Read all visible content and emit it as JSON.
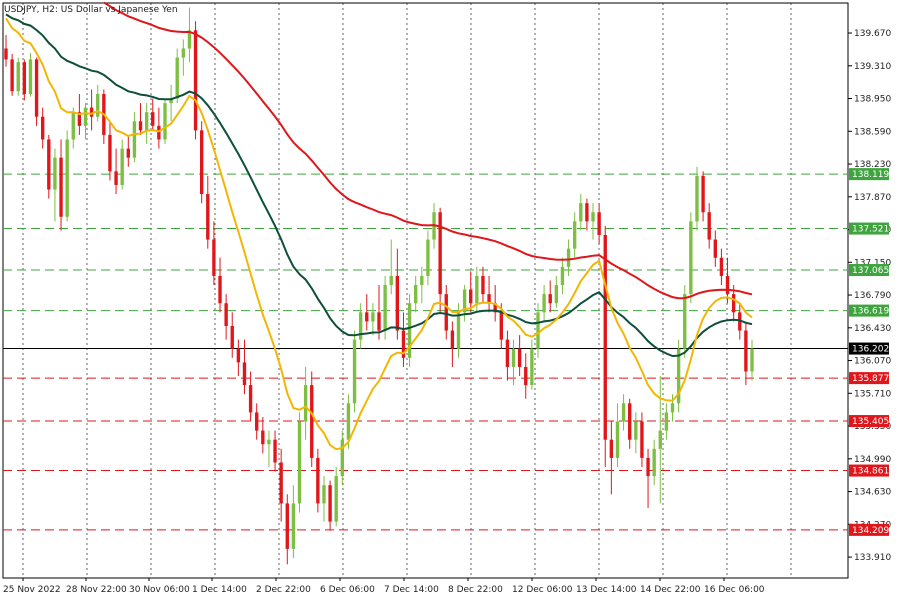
{
  "chart_data": {
    "type": "candlestick",
    "title": "USDJPY, H2:  US Dollar vs Japanese Yen",
    "y_range": [
      133.68,
      140.0
    ],
    "y_ticks": [
      "139.670",
      "139.310",
      "138.950",
      "138.590",
      "138.230",
      "137.870",
      "137.510",
      "137.150",
      "136.790",
      "136.430",
      "136.070",
      "135.710",
      "135.350",
      "134.990",
      "134.630",
      "134.270",
      "133.910"
    ],
    "x_tick_labels": [
      "25 Nov 2022",
      "28 Nov 22:00",
      "30 Nov 06:00",
      "1 Dec 14:00",
      "2 Dec 22:00",
      "6 Dec 06:00",
      "7 Dec 14:00",
      "8 Dec 22:00",
      "12 Dec 06:00",
      "13 Dec 14:00",
      "14 Dec 22:00",
      "16 Dec 06:00"
    ],
    "grid": "on (vertical dotted)",
    "current_price": 136.202,
    "horizontal_levels": [
      {
        "value": 138.119,
        "color": "green"
      },
      {
        "value": 137.521,
        "color": "green"
      },
      {
        "value": 137.065,
        "color": "green"
      },
      {
        "value": 136.619,
        "color": "green"
      },
      {
        "value": 135.877,
        "color": "red"
      },
      {
        "value": 135.405,
        "color": "red"
      },
      {
        "value": 134.861,
        "color": "red"
      },
      {
        "value": 134.209,
        "color": "red"
      }
    ],
    "candles": [
      {
        "o": 139.5,
        "h": 139.65,
        "l": 139.3,
        "c": 139.38
      },
      {
        "o": 139.38,
        "h": 139.44,
        "l": 138.98,
        "c": 139.03
      },
      {
        "o": 139.03,
        "h": 139.4,
        "l": 138.98,
        "c": 139.35
      },
      {
        "o": 139.35,
        "h": 139.38,
        "l": 138.93,
        "c": 139.0
      },
      {
        "o": 139.0,
        "h": 139.45,
        "l": 138.97,
        "c": 139.38
      },
      {
        "o": 139.38,
        "h": 139.4,
        "l": 138.65,
        "c": 138.75
      },
      {
        "o": 138.75,
        "h": 138.85,
        "l": 138.4,
        "c": 138.5
      },
      {
        "o": 138.5,
        "h": 138.55,
        "l": 137.85,
        "c": 137.95
      },
      {
        "o": 137.95,
        "h": 138.4,
        "l": 137.6,
        "c": 138.3
      },
      {
        "o": 138.3,
        "h": 138.5,
        "l": 137.5,
        "c": 137.65
      },
      {
        "o": 137.65,
        "h": 138.6,
        "l": 137.6,
        "c": 138.5
      },
      {
        "o": 138.5,
        "h": 138.85,
        "l": 138.4,
        "c": 138.8
      },
      {
        "o": 138.8,
        "h": 139.0,
        "l": 138.55,
        "c": 138.65
      },
      {
        "o": 138.65,
        "h": 138.9,
        "l": 138.5,
        "c": 138.85
      },
      {
        "o": 138.85,
        "h": 139.05,
        "l": 138.6,
        "c": 138.75
      },
      {
        "o": 138.75,
        "h": 139.1,
        "l": 138.7,
        "c": 139.0
      },
      {
        "o": 139.0,
        "h": 139.05,
        "l": 138.45,
        "c": 138.55
      },
      {
        "o": 138.55,
        "h": 138.7,
        "l": 138.05,
        "c": 138.15
      },
      {
        "o": 138.15,
        "h": 138.4,
        "l": 137.9,
        "c": 138.0
      },
      {
        "o": 138.0,
        "h": 138.5,
        "l": 137.95,
        "c": 138.4
      },
      {
        "o": 138.4,
        "h": 138.55,
        "l": 138.2,
        "c": 138.3
      },
      {
        "o": 138.3,
        "h": 138.8,
        "l": 138.25,
        "c": 138.7
      },
      {
        "o": 138.7,
        "h": 138.9,
        "l": 138.55,
        "c": 138.6
      },
      {
        "o": 138.6,
        "h": 138.9,
        "l": 138.45,
        "c": 138.8
      },
      {
        "o": 138.8,
        "h": 138.95,
        "l": 138.6,
        "c": 138.65
      },
      {
        "o": 138.65,
        "h": 138.85,
        "l": 138.4,
        "c": 138.5
      },
      {
        "o": 138.5,
        "h": 138.95,
        "l": 138.45,
        "c": 138.9
      },
      {
        "o": 138.9,
        "h": 139.1,
        "l": 138.7,
        "c": 138.95
      },
      {
        "o": 138.95,
        "h": 139.5,
        "l": 138.9,
        "c": 139.4
      },
      {
        "o": 139.4,
        "h": 139.6,
        "l": 139.2,
        "c": 139.5
      },
      {
        "o": 139.5,
        "h": 139.95,
        "l": 139.35,
        "c": 139.7
      },
      {
        "o": 139.7,
        "h": 139.8,
        "l": 138.5,
        "c": 138.6
      },
      {
        "o": 138.6,
        "h": 138.7,
        "l": 137.8,
        "c": 137.9
      },
      {
        "o": 137.9,
        "h": 138.1,
        "l": 137.3,
        "c": 137.4
      },
      {
        "o": 137.4,
        "h": 137.6,
        "l": 136.9,
        "c": 137.0
      },
      {
        "o": 137.0,
        "h": 137.2,
        "l": 136.6,
        "c": 136.7
      },
      {
        "o": 136.7,
        "h": 136.8,
        "l": 136.3,
        "c": 136.45
      },
      {
        "o": 136.45,
        "h": 136.6,
        "l": 136.1,
        "c": 136.2
      },
      {
        "o": 136.2,
        "h": 136.3,
        "l": 135.9,
        "c": 136.05
      },
      {
        "o": 136.05,
        "h": 136.3,
        "l": 135.7,
        "c": 135.8
      },
      {
        "o": 135.8,
        "h": 135.95,
        "l": 135.4,
        "c": 135.5
      },
      {
        "o": 135.5,
        "h": 135.6,
        "l": 135.2,
        "c": 135.3
      },
      {
        "o": 135.3,
        "h": 135.45,
        "l": 135.05,
        "c": 135.15
      },
      {
        "o": 135.15,
        "h": 135.3,
        "l": 134.9,
        "c": 135.2
      },
      {
        "o": 135.2,
        "h": 135.3,
        "l": 134.85,
        "c": 134.95
      },
      {
        "o": 134.95,
        "h": 135.1,
        "l": 134.3,
        "c": 134.5
      },
      {
        "o": 134.5,
        "h": 134.6,
        "l": 133.83,
        "c": 134.0
      },
      {
        "o": 134.0,
        "h": 134.7,
        "l": 133.9,
        "c": 134.5
      },
      {
        "o": 134.5,
        "h": 135.5,
        "l": 134.4,
        "c": 135.4
      },
      {
        "o": 135.4,
        "h": 136.0,
        "l": 135.2,
        "c": 135.8
      },
      {
        "o": 135.8,
        "h": 135.95,
        "l": 134.9,
        "c": 135.0
      },
      {
        "o": 135.0,
        "h": 135.1,
        "l": 134.4,
        "c": 134.5
      },
      {
        "o": 134.5,
        "h": 134.8,
        "l": 134.3,
        "c": 134.7
      },
      {
        "o": 134.7,
        "h": 134.75,
        "l": 134.2,
        "c": 134.3
      },
      {
        "o": 134.3,
        "h": 134.9,
        "l": 134.25,
        "c": 134.8
      },
      {
        "o": 134.8,
        "h": 135.3,
        "l": 134.7,
        "c": 135.2
      },
      {
        "o": 135.2,
        "h": 135.7,
        "l": 135.1,
        "c": 135.6
      },
      {
        "o": 135.6,
        "h": 136.4,
        "l": 135.5,
        "c": 136.3
      },
      {
        "o": 136.3,
        "h": 136.7,
        "l": 136.2,
        "c": 136.6
      },
      {
        "o": 136.6,
        "h": 136.8,
        "l": 136.4,
        "c": 136.5
      },
      {
        "o": 136.5,
        "h": 136.7,
        "l": 136.35,
        "c": 136.6
      },
      {
        "o": 136.6,
        "h": 136.9,
        "l": 136.3,
        "c": 136.4
      },
      {
        "o": 136.4,
        "h": 137.0,
        "l": 136.3,
        "c": 136.9
      },
      {
        "o": 136.9,
        "h": 137.4,
        "l": 136.8,
        "c": 137.0
      },
      {
        "o": 137.0,
        "h": 137.3,
        "l": 136.3,
        "c": 136.4
      },
      {
        "o": 136.4,
        "h": 136.6,
        "l": 136.0,
        "c": 136.1
      },
      {
        "o": 136.1,
        "h": 136.8,
        "l": 136.0,
        "c": 136.7
      },
      {
        "o": 136.7,
        "h": 137.0,
        "l": 136.6,
        "c": 136.9
      },
      {
        "o": 136.9,
        "h": 137.1,
        "l": 136.7,
        "c": 137.0
      },
      {
        "o": 137.0,
        "h": 137.5,
        "l": 136.9,
        "c": 137.4
      },
      {
        "o": 137.4,
        "h": 137.8,
        "l": 137.3,
        "c": 137.7
      },
      {
        "o": 137.7,
        "h": 137.75,
        "l": 136.6,
        "c": 136.8
      },
      {
        "o": 136.8,
        "h": 136.9,
        "l": 136.3,
        "c": 136.4
      },
      {
        "o": 136.4,
        "h": 136.5,
        "l": 136.0,
        "c": 136.2
      },
      {
        "o": 136.2,
        "h": 136.7,
        "l": 136.1,
        "c": 136.6
      },
      {
        "o": 136.6,
        "h": 136.9,
        "l": 136.5,
        "c": 136.85
      },
      {
        "o": 136.85,
        "h": 137.05,
        "l": 136.6,
        "c": 136.7
      },
      {
        "o": 136.7,
        "h": 137.1,
        "l": 136.6,
        "c": 137.0
      },
      {
        "o": 137.0,
        "h": 137.1,
        "l": 136.7,
        "c": 136.8
      },
      {
        "o": 136.8,
        "h": 137.0,
        "l": 136.6,
        "c": 136.7
      },
      {
        "o": 136.7,
        "h": 136.9,
        "l": 136.5,
        "c": 136.6
      },
      {
        "o": 136.6,
        "h": 136.7,
        "l": 136.2,
        "c": 136.3
      },
      {
        "o": 136.3,
        "h": 136.4,
        "l": 135.85,
        "c": 136.0
      },
      {
        "o": 136.0,
        "h": 136.3,
        "l": 135.8,
        "c": 136.2
      },
      {
        "o": 136.2,
        "h": 136.35,
        "l": 135.9,
        "c": 136.0
      },
      {
        "o": 136.0,
        "h": 136.15,
        "l": 135.65,
        "c": 135.8
      },
      {
        "o": 135.8,
        "h": 136.3,
        "l": 135.75,
        "c": 136.2
      },
      {
        "o": 136.2,
        "h": 136.7,
        "l": 136.1,
        "c": 136.6
      },
      {
        "o": 136.6,
        "h": 136.9,
        "l": 136.5,
        "c": 136.8
      },
      {
        "o": 136.8,
        "h": 136.95,
        "l": 136.6,
        "c": 136.7
      },
      {
        "o": 136.7,
        "h": 137.0,
        "l": 136.65,
        "c": 136.9
      },
      {
        "o": 136.9,
        "h": 137.2,
        "l": 136.8,
        "c": 137.1
      },
      {
        "o": 137.1,
        "h": 137.4,
        "l": 137.0,
        "c": 137.3
      },
      {
        "o": 137.3,
        "h": 137.7,
        "l": 137.2,
        "c": 137.6
      },
      {
        "o": 137.6,
        "h": 137.9,
        "l": 137.5,
        "c": 137.8
      },
      {
        "o": 137.8,
        "h": 137.85,
        "l": 137.5,
        "c": 137.6
      },
      {
        "o": 137.6,
        "h": 137.8,
        "l": 137.4,
        "c": 137.7
      },
      {
        "o": 137.7,
        "h": 137.8,
        "l": 137.35,
        "c": 137.45
      },
      {
        "o": 137.45,
        "h": 137.55,
        "l": 134.9,
        "c": 135.2
      },
      {
        "o": 135.2,
        "h": 135.4,
        "l": 134.6,
        "c": 135.0
      },
      {
        "o": 135.0,
        "h": 135.6,
        "l": 134.9,
        "c": 135.4
      },
      {
        "o": 135.4,
        "h": 135.7,
        "l": 135.3,
        "c": 135.6
      },
      {
        "o": 135.6,
        "h": 135.65,
        "l": 135.1,
        "c": 135.2
      },
      {
        "o": 135.2,
        "h": 135.5,
        "l": 135.05,
        "c": 135.4
      },
      {
        "o": 135.4,
        "h": 135.5,
        "l": 134.9,
        "c": 135.0
      },
      {
        "o": 135.0,
        "h": 135.1,
        "l": 134.45,
        "c": 134.8
      },
      {
        "o": 134.8,
        "h": 135.2,
        "l": 134.7,
        "c": 135.1
      },
      {
        "o": 135.1,
        "h": 135.9,
        "l": 134.5,
        "c": 135.3
      },
      {
        "o": 135.3,
        "h": 135.6,
        "l": 135.2,
        "c": 135.5
      },
      {
        "o": 135.5,
        "h": 135.7,
        "l": 135.4,
        "c": 135.6
      },
      {
        "o": 135.6,
        "h": 136.3,
        "l": 135.5,
        "c": 136.2
      },
      {
        "o": 136.2,
        "h": 136.9,
        "l": 136.1,
        "c": 136.8
      },
      {
        "o": 136.8,
        "h": 137.7,
        "l": 136.7,
        "c": 137.6
      },
      {
        "o": 137.6,
        "h": 138.2,
        "l": 137.5,
        "c": 138.1
      },
      {
        "o": 138.1,
        "h": 138.15,
        "l": 137.6,
        "c": 137.7
      },
      {
        "o": 137.7,
        "h": 137.8,
        "l": 137.3,
        "c": 137.4
      },
      {
        "o": 137.4,
        "h": 137.5,
        "l": 137.1,
        "c": 137.2
      },
      {
        "o": 137.2,
        "h": 137.3,
        "l": 136.9,
        "c": 137.0
      },
      {
        "o": 137.0,
        "h": 137.2,
        "l": 136.7,
        "c": 136.8
      },
      {
        "o": 136.8,
        "h": 136.9,
        "l": 136.5,
        "c": 136.6
      },
      {
        "o": 136.6,
        "h": 136.7,
        "l": 136.3,
        "c": 136.4
      },
      {
        "o": 136.4,
        "h": 136.5,
        "l": 135.8,
        "c": 135.95
      },
      {
        "o": 135.95,
        "h": 136.3,
        "l": 135.85,
        "c": 136.2
      }
    ]
  },
  "ma_colors": {
    "red_ma": "#e0161b",
    "teal_ma": "#0e4f3c",
    "orange_ma": "#f2b705"
  },
  "colors": {
    "bull": "#7cbf42",
    "bear": "#e0161b",
    "green_tag": "#3ea43e",
    "red_tag": "#e0161b",
    "black_tag": "#000000"
  }
}
